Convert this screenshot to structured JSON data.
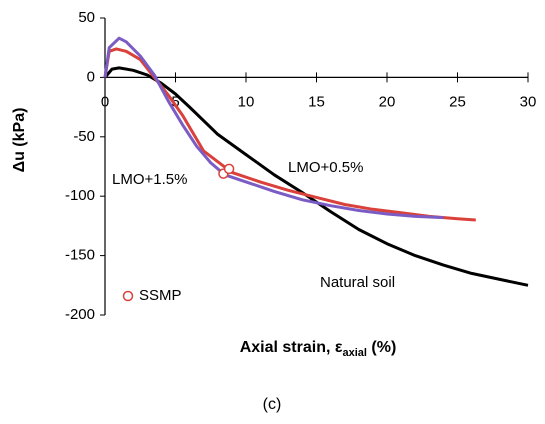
{
  "chart_data": {
    "type": "line",
    "ylabel": "Δu (kPa)",
    "xlabel": {
      "text": "Axial strain, ε",
      "subscript": "axial",
      "suffix": " (%)"
    },
    "caption": "(c)",
    "xlim": [
      0,
      30
    ],
    "xticks": [
      0,
      5,
      10,
      15,
      20,
      25,
      30
    ],
    "ylim": [
      -200,
      50
    ],
    "yticks": [
      -200,
      -150,
      -100,
      -50,
      0,
      50
    ],
    "grid": false,
    "legend": "lower left",
    "series": [
      {
        "name": "Natural soil",
        "color": "#000000",
        "kind": "line",
        "x": [
          0,
          0.5,
          1,
          2,
          3,
          4,
          5,
          6,
          8,
          10,
          12,
          14,
          16,
          18,
          20,
          22,
          24,
          26,
          28,
          30
        ],
        "values": [
          0,
          7,
          8,
          6,
          2,
          -5,
          -14,
          -25,
          -48,
          -65,
          -82,
          -97,
          -113,
          -128,
          -140,
          -150,
          -158,
          -165,
          -170,
          -175
        ]
      },
      {
        "name": "LMO+0.5%",
        "color": "#d9413a",
        "kind": "line",
        "x": [
          0,
          0.3,
          0.8,
          1.5,
          2.5,
          3.5,
          4.5,
          5.5,
          7,
          9,
          11,
          13,
          15,
          17,
          19,
          21,
          23,
          25,
          26.3
        ],
        "values": [
          0,
          22,
          24,
          22,
          15,
          0,
          -15,
          -32,
          -62,
          -80,
          -88,
          -95,
          -101,
          -107,
          -111,
          -114,
          -117,
          -119,
          -120
        ]
      },
      {
        "name": "LMO+1.5%",
        "color": "#7b5cc4",
        "kind": "line",
        "x": [
          0,
          0.3,
          1,
          1.5,
          2.5,
          3.5,
          4.5,
          5.5,
          6.5,
          7.5,
          8.5,
          10,
          12,
          14,
          16,
          18,
          20,
          22,
          24
        ],
        "values": [
          0,
          25,
          33,
          30,
          18,
          2,
          -20,
          -40,
          -58,
          -72,
          -82,
          -88,
          -96,
          -103,
          -108,
          -112,
          -115,
          -117,
          -118
        ]
      },
      {
        "name": "SSMP",
        "color": "#d9413a",
        "kind": "scatter",
        "x": [
          8.4,
          8.8
        ],
        "values": [
          -81,
          -77
        ]
      }
    ]
  }
}
